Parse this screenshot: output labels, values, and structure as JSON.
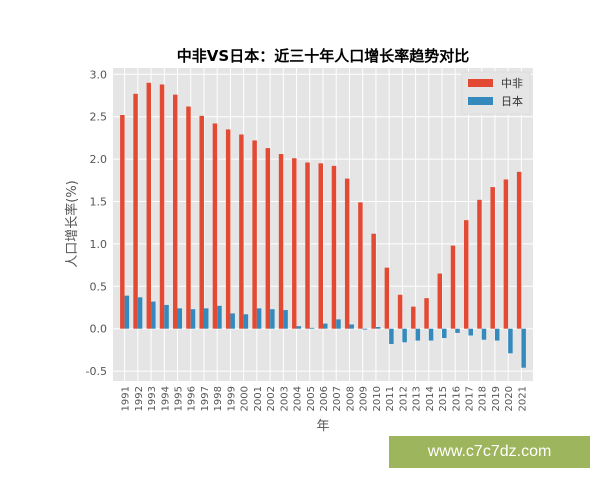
{
  "chart_data": {
    "type": "bar",
    "title": "中非VS日本：近三十年人口增长率趋势对比",
    "xlabel": "年",
    "ylabel": "人口增长率(%)",
    "ylim": [
      -0.6,
      3.08
    ],
    "yticks": [
      "3.0",
      "2.5",
      "2.0",
      "1.5",
      "1.0",
      "0.5",
      "0.0",
      "-0.5"
    ],
    "ytick_values": [
      3.0,
      2.5,
      2.0,
      1.5,
      1.0,
      0.5,
      0.0,
      -0.5
    ],
    "grid": true,
    "legend_position": "top-right",
    "categories": [
      "1991",
      "1992",
      "1993",
      "1994",
      "1995",
      "1996",
      "1997",
      "1998",
      "1999",
      "2000",
      "2001",
      "2002",
      "2003",
      "2004",
      "2005",
      "2006",
      "2007",
      "2008",
      "2009",
      "2010",
      "2011",
      "2012",
      "2013",
      "2014",
      "2015",
      "2016",
      "2017",
      "2018",
      "2019",
      "2020",
      "2021"
    ],
    "series": [
      {
        "name": "中非",
        "color": "#e24a33",
        "values": [
          2.52,
          2.77,
          2.9,
          2.88,
          2.76,
          2.62,
          2.51,
          2.42,
          2.35,
          2.29,
          2.22,
          2.13,
          2.06,
          2.01,
          1.96,
          1.95,
          1.92,
          1.77,
          1.49,
          1.12,
          0.72,
          0.4,
          0.26,
          0.36,
          0.65,
          0.98,
          1.28,
          1.52,
          1.67,
          1.76,
          1.85
        ]
      },
      {
        "name": "日本",
        "color": "#348abd",
        "values": [
          0.39,
          0.37,
          0.32,
          0.28,
          0.24,
          0.23,
          0.24,
          0.27,
          0.18,
          0.17,
          0.24,
          0.23,
          0.22,
          0.03,
          0.01,
          0.06,
          0.11,
          0.05,
          -0.01,
          0.02,
          -0.18,
          -0.16,
          -0.14,
          -0.14,
          -0.11,
          -0.05,
          -0.08,
          -0.13,
          -0.14,
          -0.29,
          -0.46
        ]
      }
    ]
  },
  "watermark": "www.c7c7dz.com"
}
